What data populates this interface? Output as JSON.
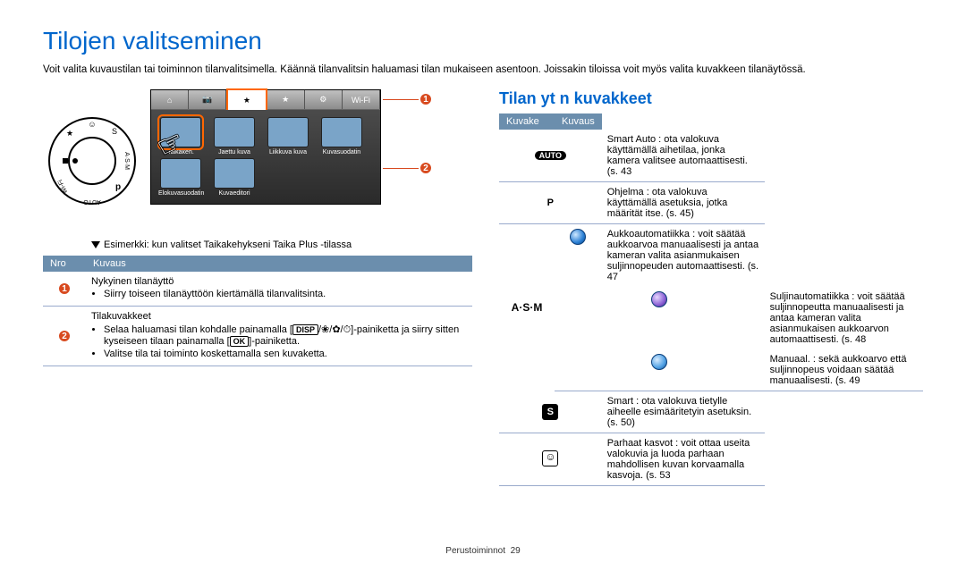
{
  "page": {
    "title": "Tilojen valitseminen",
    "intro": "Voit valita kuvaustilan tai toiminnon tilanvalitsimella. Käännä tilanvalitsin haluamasi tilan mukaiseen asentoon. Joissakin tiloissa voit myös valita kuvakkeen tilanäytössä.",
    "footer_label": "Perustoiminnot",
    "footer_page": "29"
  },
  "illustration": {
    "tabs": [
      "⌂",
      "📷",
      "★",
      "★",
      "⚙",
      "Wi-Fi"
    ],
    "active_tab_index": 2,
    "row1": [
      {
        "label": "Taikakeh.",
        "selected": true
      },
      {
        "label": "Jaettu kuva"
      },
      {
        "label": "Liikkuva kuva"
      },
      {
        "label": "Kuvasuodatin"
      }
    ],
    "row2": [
      {
        "label": "Elokuvasuodatin"
      },
      {
        "label": "Kuvaeditori"
      }
    ],
    "example_caption": "Esimerkki: kun valitset Taikakehykseni Taika Plus -tilassa",
    "callouts": [
      "1",
      "2"
    ]
  },
  "left_table": {
    "headers": [
      "Nro",
      "Kuvaus"
    ],
    "rows": [
      {
        "num": "1",
        "title": "Nykyinen tilanäyttö",
        "bullets": [
          "Siirry toiseen tilanäyttöön kiertämällä tilanvalitsinta."
        ]
      },
      {
        "num": "2",
        "title": "Tilakuvakkeet",
        "bullets": [
          "Selaa haluamasi tilan kohdalle painamalla [DISP/❀/✿/⏱]-painiketta ja siirry sitten kyseiseen tilaan painamalla [OK]-painiketta.",
          "Valitse tila tai toiminto koskettamalla sen kuvaketta."
        ]
      }
    ]
  },
  "right": {
    "section_title": "Tilan yt n kuvakkeet",
    "headers": [
      "Kuvake",
      "Kuvaus"
    ],
    "rows": [
      {
        "icon": "auto",
        "text": "Smart Auto : ota valokuva käyttämällä aihetilaa, jonka kamera valitsee automaattisesti. (s. 43"
      },
      {
        "icon": "P",
        "text": "Ohjelma : ota valokuva käyttämällä asetuksia, jotka määrität itse. (s. 45)"
      },
      {
        "icon": "sphere1",
        "text": "Aukkoautomatiikka  : voit säätää aukkoarvoa manuaalisesti ja antaa kameran valita asianmukaisen suljinnopeuden automaattisesti. (s. 47",
        "group": "asm"
      },
      {
        "icon": "sphere2",
        "text": "Suljinautomatiikka  : voit säätää suljinnopeutta manuaalisesti ja antaa kameran valita asianmukaisen aukkoarvon automaattisesti. (s. 48",
        "group": "asm"
      },
      {
        "icon": "sphere3",
        "text": "Manuaal. : sekä aukkoarvo että suljinnopeus voidaan säätää manuaalisesti. (s. 49",
        "group": "asm"
      },
      {
        "icon": "S",
        "text": "Smart : ota valokuva tietylle aiheelle esimääritetyin asetuksin. (s. 50)"
      },
      {
        "icon": "face",
        "text": "Parhaat kasvot : voit ottaa useita valokuvia ja luoda parhaan mahdollisen kuvan korvaamalla kasvoja. (s. 53"
      }
    ],
    "asm_label": "A·S·M"
  },
  "colors": {
    "accent": "#0066cc",
    "callout": "#d84a1f",
    "thead": "#6b8ead",
    "rule": "#99aacc"
  }
}
